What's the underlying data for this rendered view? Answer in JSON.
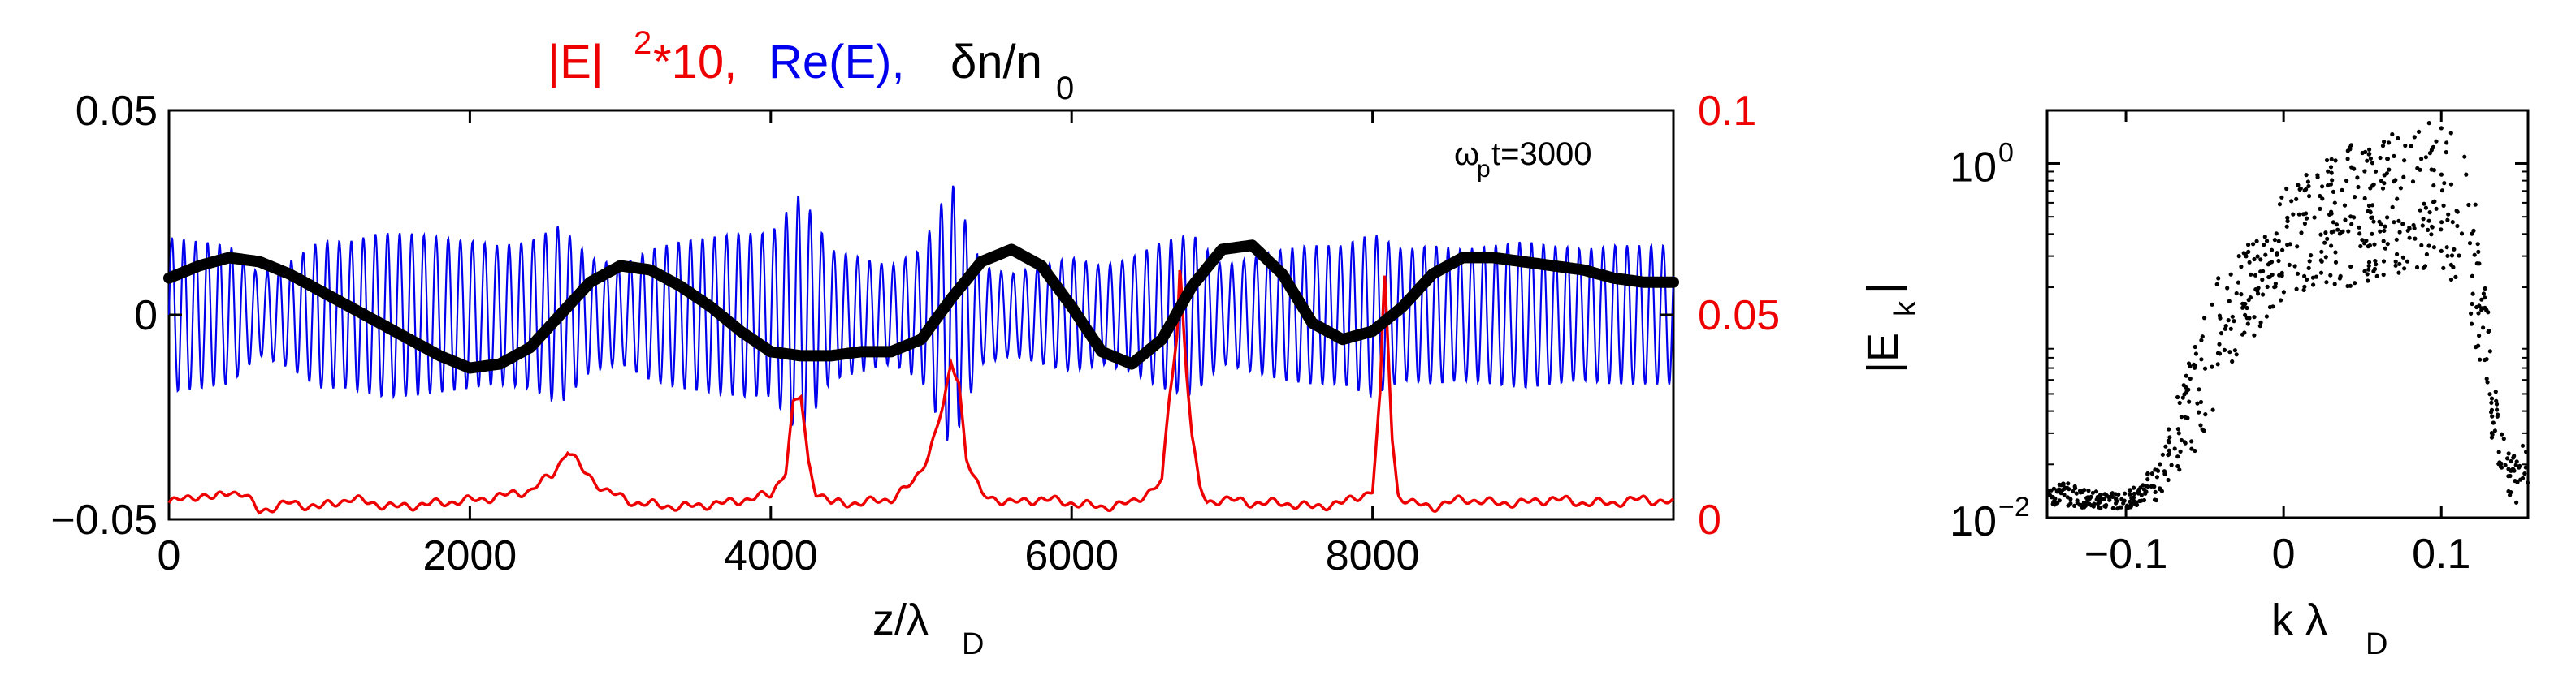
{
  "chart_data": [
    {
      "type": "line",
      "title_parts": {
        "e2_main": "|E|",
        "e2_sup": "2",
        "e2_rest": "*10,",
        "re_label": "Re(E),",
        "dn_main": "δn/n",
        "dn_sub": "0"
      },
      "xlabel": {
        "main": "z/λ",
        "sub": "D"
      },
      "annotation": {
        "w": "ω",
        "w_sub": "p",
        "rest": "t=3000"
      },
      "xlim": [
        0,
        10000
      ],
      "ylim_left": [
        -0.05,
        0.05
      ],
      "ylim_right": [
        0,
        0.1
      ],
      "x_ticks": [
        0,
        2000,
        4000,
        6000,
        8000
      ],
      "x_tick_labels": [
        "0",
        "2000",
        "4000",
        "6000",
        "8000"
      ],
      "y_left_ticks": [
        -0.05,
        0,
        0.05
      ],
      "y_left_tick_labels": [
        "−0.05",
        "0",
        "0.05"
      ],
      "y_right_ticks": [
        0,
        0.05,
        0.1
      ],
      "y_right_tick_labels": [
        "0",
        "0.05",
        "0.1"
      ],
      "series": [
        {
          "name": "δn/n0",
          "axis": "left",
          "color": "#000000",
          "x": [
            0,
            200,
            400,
            600,
            800,
            1000,
            1200,
            1400,
            1600,
            1800,
            2000,
            2200,
            2400,
            2600,
            2800,
            3000,
            3200,
            3400,
            3600,
            3800,
            4000,
            4200,
            4400,
            4600,
            4800,
            5000,
            5200,
            5400,
            5600,
            5800,
            6000,
            6200,
            6400,
            6600,
            6800,
            7000,
            7200,
            7400,
            7600,
            7800,
            8000,
            8200,
            8400,
            8600,
            8800,
            9000,
            9200,
            9400,
            9600,
            9800,
            10000
          ],
          "y": [
            0.009,
            0.012,
            0.014,
            0.013,
            0.01,
            0.006,
            0.002,
            -0.002,
            -0.006,
            -0.01,
            -0.013,
            -0.012,
            -0.008,
            0.0,
            0.008,
            0.012,
            0.011,
            0.007,
            0.002,
            -0.004,
            -0.009,
            -0.01,
            -0.01,
            -0.009,
            -0.009,
            -0.006,
            0.004,
            0.013,
            0.016,
            0.012,
            0.002,
            -0.009,
            -0.012,
            -0.006,
            0.007,
            0.016,
            0.017,
            0.01,
            -0.002,
            -0.006,
            -0.004,
            0.002,
            0.01,
            0.014,
            0.014,
            0.013,
            0.012,
            0.011,
            0.009,
            0.008,
            0.008
          ]
        },
        {
          "name": "Re(E)",
          "axis": "left",
          "color": "#0000ee",
          "envelope_x": [
            0,
            200,
            400,
            600,
            800,
            1000,
            1200,
            1400,
            1600,
            1800,
            2000,
            2200,
            2400,
            2600,
            2800,
            3000,
            3200,
            3400,
            3600,
            3800,
            4000,
            4200,
            4400,
            4600,
            4800,
            5000,
            5200,
            5400,
            5600,
            5800,
            6000,
            6200,
            6400,
            6600,
            6800,
            7000,
            7200,
            7400,
            7600,
            7800,
            8000,
            8200,
            8400,
            8600,
            8800,
            9000,
            9200,
            9400,
            9600,
            9800,
            10000
          ],
          "envelope_amp": [
            0.019,
            0.018,
            0.017,
            0.01,
            0.013,
            0.018,
            0.018,
            0.02,
            0.02,
            0.019,
            0.018,
            0.017,
            0.018,
            0.022,
            0.014,
            0.012,
            0.016,
            0.018,
            0.019,
            0.02,
            0.02,
            0.03,
            0.016,
            0.014,
            0.012,
            0.016,
            0.033,
            0.012,
            0.01,
            0.012,
            0.014,
            0.012,
            0.014,
            0.018,
            0.02,
            0.012,
            0.014,
            0.016,
            0.017,
            0.017,
            0.02,
            0.016,
            0.017,
            0.016,
            0.017,
            0.018,
            0.017,
            0.016,
            0.017,
            0.017,
            0.017
          ],
          "wavelength": 80
        },
        {
          "name": "|E|^2*10",
          "axis": "right",
          "color": "#ee0000",
          "x": [
            0,
            100,
            200,
            300,
            400,
            500,
            600,
            800,
            1000,
            1200,
            1500,
            1800,
            2100,
            2400,
            2550,
            2650,
            2750,
            2900,
            3100,
            3400,
            3700,
            4000,
            4100,
            4150,
            4200,
            4250,
            4300,
            4400,
            4600,
            4800,
            4950,
            5050,
            5100,
            5150,
            5200,
            5250,
            5300,
            5400,
            5600,
            5800,
            6000,
            6200,
            6400,
            6600,
            6650,
            6700,
            6720,
            6740,
            6760,
            6800,
            6850,
            6900,
            7000,
            7200,
            7400,
            7600,
            7800,
            8000,
            8050,
            8080,
            8100,
            8130,
            8170,
            8250,
            8400,
            8600,
            8800,
            9000,
            9200,
            9400,
            9600,
            9800,
            10000
          ],
          "y": [
            0.004,
            0.005,
            0.006,
            0.005,
            0.007,
            0.006,
            0.002,
            0.004,
            0.003,
            0.005,
            0.003,
            0.004,
            0.005,
            0.007,
            0.011,
            0.017,
            0.012,
            0.007,
            0.004,
            0.003,
            0.004,
            0.006,
            0.012,
            0.028,
            0.03,
            0.014,
            0.007,
            0.004,
            0.004,
            0.005,
            0.009,
            0.016,
            0.022,
            0.028,
            0.038,
            0.034,
            0.015,
            0.006,
            0.004,
            0.005,
            0.004,
            0.003,
            0.004,
            0.009,
            0.03,
            0.045,
            0.062,
            0.05,
            0.038,
            0.02,
            0.008,
            0.004,
            0.005,
            0.004,
            0.004,
            0.003,
            0.004,
            0.007,
            0.03,
            0.06,
            0.045,
            0.02,
            0.006,
            0.004,
            0.003,
            0.005,
            0.004,
            0.004,
            0.005,
            0.004,
            0.004,
            0.005,
            0.004
          ]
        }
      ]
    },
    {
      "type": "scatter",
      "ylabel": {
        "main": "|E",
        "sub": "k",
        "end": "|"
      },
      "xlabel": {
        "main": "k λ",
        "sub": "D"
      },
      "xlim": [
        -0.15,
        0.155
      ],
      "ylim_log10": [
        -2,
        0.3
      ],
      "x_ticks": [
        -0.1,
        0,
        0.1
      ],
      "x_tick_labels": [
        "−0.1",
        "0",
        "0.1"
      ],
      "y_ticks_log10": [
        -2,
        0
      ],
      "y_tick_base": "10",
      "y_tick_exponents": [
        "−2",
        "0"
      ],
      "color": "#000000",
      "point_count": 700,
      "profile_note": "approximate log10 envelope of scattered points",
      "profile_k": [
        -0.15,
        -0.12,
        -0.1,
        -0.08,
        -0.06,
        -0.04,
        -0.02,
        0.0,
        0.02,
        0.04,
        0.06,
        0.08,
        0.1,
        0.115,
        0.125,
        0.135,
        0.145,
        0.155
      ],
      "profile_log10_center": [
        -1.85,
        -1.9,
        -1.9,
        -1.8,
        -1.4,
        -0.95,
        -0.7,
        -0.45,
        -0.35,
        -0.3,
        -0.25,
        -0.2,
        -0.2,
        -0.3,
        -0.8,
        -1.5,
        -1.8,
        -1.7
      ],
      "profile_log10_spread": [
        0.08,
        0.05,
        0.05,
        0.1,
        0.3,
        0.35,
        0.3,
        0.3,
        0.35,
        0.4,
        0.4,
        0.4,
        0.45,
        0.4,
        0.4,
        0.2,
        0.15,
        0.15
      ]
    }
  ]
}
